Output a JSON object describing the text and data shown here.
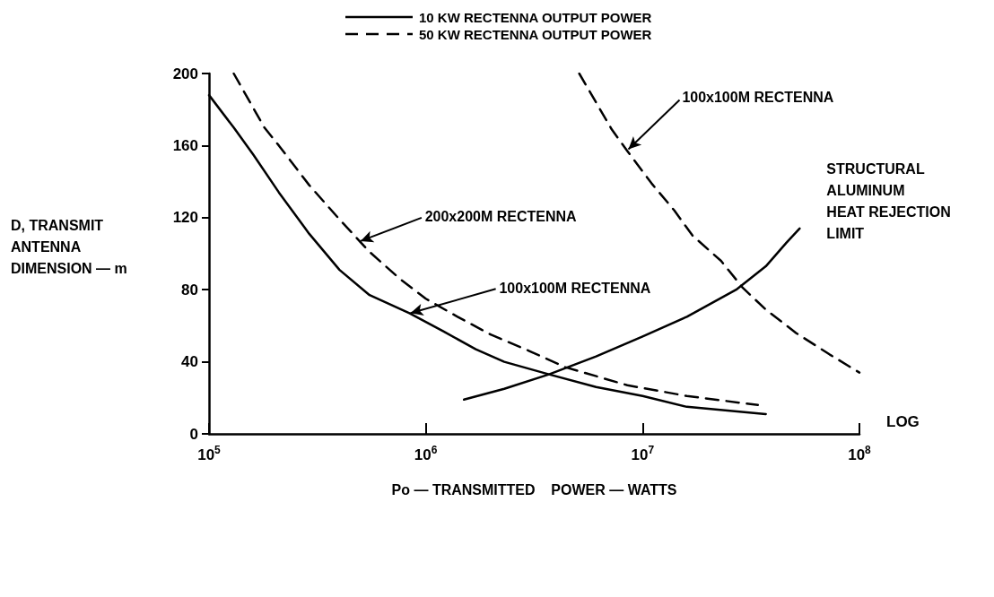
{
  "chart_data": {
    "type": "line",
    "xlabel": "Po — TRANSMITTED    POWER — WATTS",
    "ylabel": "D, TRANSMIT\nANTENNA\nDIMENSION — m",
    "log": "x",
    "xlim": [
      100000,
      100000000
    ],
    "xticks": [
      {
        "value": 100000,
        "label": "10$^{5}$"
      },
      {
        "value": 1000000,
        "label": "10$^{6}$"
      },
      {
        "value": 10000000,
        "label": "10$^{7}$"
      },
      {
        "value": 100000000,
        "label": "10$^{8}$"
      }
    ],
    "ylim": [
      0,
      200
    ],
    "yticks": [
      0,
      40,
      80,
      120,
      160,
      200
    ],
    "grid": false,
    "legend": "top",
    "marker": "none",
    "series": [
      {
        "name": "10 KW RECTENNA OUTPUT POWER",
        "color": "#000000",
        "line_style": "solid",
        "x": [
          100000,
          130000,
          160000,
          210000,
          290000,
          400000,
          550000,
          840000,
          1200000,
          1700000,
          2300000,
          3700000,
          6100000,
          10000000,
          16000000,
          37000000
        ],
        "values": [
          188,
          170,
          155,
          134,
          111,
          91,
          77,
          67,
          57,
          47,
          40,
          33,
          26,
          21,
          15,
          11
        ]
      },
      {
        "name": "50 KW RECTENNA OUTPUT POWER",
        "color": "#000000",
        "line_style": "dashed",
        "x": [
          130000,
          180000,
          210000,
          290000,
          400000,
          550000,
          760000,
          1000000,
          1400000,
          2000000,
          3000000,
          4400000,
          8500000,
          16000000,
          34000000
        ],
        "values": [
          200,
          170,
          160,
          138,
          119,
          101,
          86,
          75,
          65,
          55,
          46,
          37,
          27,
          21,
          16
        ]
      },
      {
        "color": "#000000",
        "line_style": "dashed",
        "x": [
          5100000,
          7200000,
          8500000,
          11000000,
          14000000,
          17000000,
          23000000,
          29000000,
          37000000,
          51000000,
          73000000,
          100000000
        ],
        "values": [
          200,
          169,
          157,
          139,
          124,
          110,
          96,
          81,
          69,
          56,
          44,
          34
        ]
      },
      {
        "color": "#000000",
        "line_style": "solid",
        "x": [
          1500000,
          2300000,
          3700000,
          6100000,
          10000000,
          16000000,
          27000000,
          37000000,
          46000000,
          53000000
        ],
        "values": [
          19,
          25,
          33,
          43,
          54,
          65,
          80,
          93,
          106,
          114
        ]
      }
    ],
    "annotations": [
      {
        "text": "200x200M RECTENNA",
        "x": 500000,
        "y": 107
      },
      {
        "text": "100x100M RECTENNA",
        "x": 850000,
        "y": 67
      },
      {
        "text": "100x100M RECTENNA",
        "x": 8600000,
        "y": 158
      },
      {
        "text": "STRUCTURAL\nALUMINUM\nHEAT REJECTION\nLIMIT",
        "x": 53000000,
        "y": 114
      },
      "LOG"
    ]
  }
}
